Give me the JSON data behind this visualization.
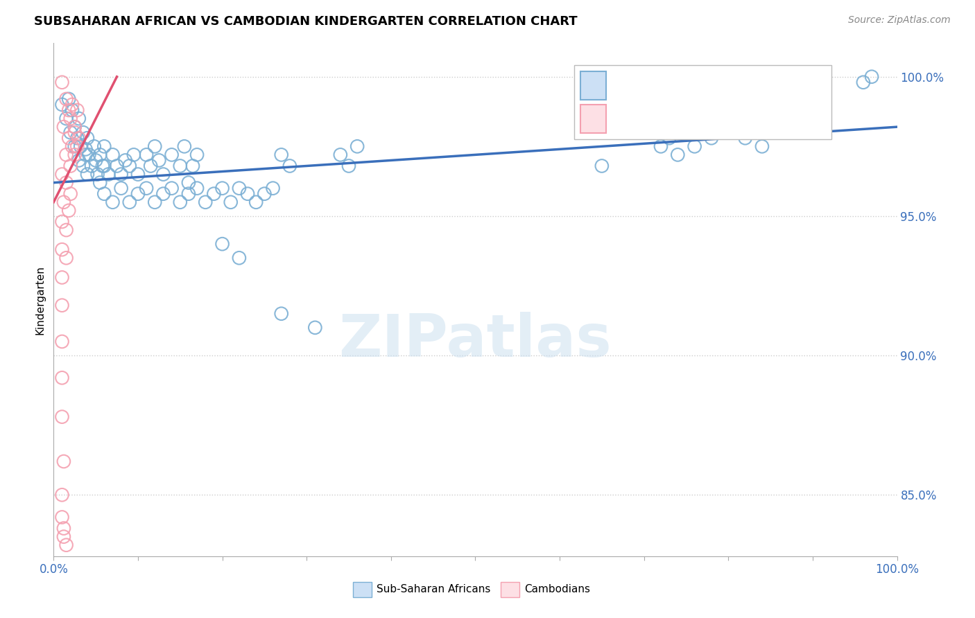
{
  "title": "SUBSAHARAN AFRICAN VS CAMBODIAN KINDERGARTEN CORRELATION CHART",
  "source": "Source: ZipAtlas.com",
  "ylabel": "Kindergarten",
  "xlim": [
    0.0,
    1.0
  ],
  "ylim": [
    0.828,
    1.012
  ],
  "yticks": [
    0.85,
    0.9,
    0.95,
    1.0
  ],
  "ytick_labels": [
    "85.0%",
    "90.0%",
    "95.0%",
    "100.0%"
  ],
  "blue_color": "#7bafd4",
  "pink_color": "#f4a0b0",
  "trendline_blue_color": "#3a6fbb",
  "trendline_pink_color": "#e05070",
  "watermark_text": "ZIPatlas",
  "blue_scatter": [
    [
      0.01,
      0.99
    ],
    [
      0.015,
      0.985
    ],
    [
      0.018,
      0.992
    ],
    [
      0.02,
      0.98
    ],
    [
      0.022,
      0.988
    ],
    [
      0.025,
      0.982
    ],
    [
      0.028,
      0.978
    ],
    [
      0.03,
      0.985
    ],
    [
      0.032,
      0.975
    ],
    [
      0.035,
      0.98
    ],
    [
      0.038,
      0.972
    ],
    [
      0.04,
      0.978
    ],
    [
      0.025,
      0.975
    ],
    [
      0.03,
      0.97
    ],
    [
      0.035,
      0.968
    ],
    [
      0.038,
      0.974
    ],
    [
      0.04,
      0.965
    ],
    [
      0.042,
      0.972
    ],
    [
      0.045,
      0.968
    ],
    [
      0.048,
      0.975
    ],
    [
      0.05,
      0.97
    ],
    [
      0.052,
      0.965
    ],
    [
      0.055,
      0.972
    ],
    [
      0.058,
      0.968
    ],
    [
      0.06,
      0.975
    ],
    [
      0.055,
      0.962
    ],
    [
      0.06,
      0.968
    ],
    [
      0.065,
      0.965
    ],
    [
      0.07,
      0.972
    ],
    [
      0.075,
      0.968
    ],
    [
      0.08,
      0.965
    ],
    [
      0.085,
      0.97
    ],
    [
      0.09,
      0.968
    ],
    [
      0.095,
      0.972
    ],
    [
      0.1,
      0.965
    ],
    [
      0.11,
      0.972
    ],
    [
      0.115,
      0.968
    ],
    [
      0.12,
      0.975
    ],
    [
      0.125,
      0.97
    ],
    [
      0.13,
      0.965
    ],
    [
      0.14,
      0.972
    ],
    [
      0.15,
      0.968
    ],
    [
      0.155,
      0.975
    ],
    [
      0.16,
      0.962
    ],
    [
      0.165,
      0.968
    ],
    [
      0.17,
      0.972
    ],
    [
      0.06,
      0.958
    ],
    [
      0.07,
      0.955
    ],
    [
      0.08,
      0.96
    ],
    [
      0.09,
      0.955
    ],
    [
      0.1,
      0.958
    ],
    [
      0.11,
      0.96
    ],
    [
      0.12,
      0.955
    ],
    [
      0.13,
      0.958
    ],
    [
      0.14,
      0.96
    ],
    [
      0.15,
      0.955
    ],
    [
      0.16,
      0.958
    ],
    [
      0.17,
      0.96
    ],
    [
      0.18,
      0.955
    ],
    [
      0.19,
      0.958
    ],
    [
      0.2,
      0.96
    ],
    [
      0.21,
      0.955
    ],
    [
      0.22,
      0.96
    ],
    [
      0.23,
      0.958
    ],
    [
      0.24,
      0.955
    ],
    [
      0.25,
      0.958
    ],
    [
      0.26,
      0.96
    ],
    [
      0.27,
      0.972
    ],
    [
      0.28,
      0.968
    ],
    [
      0.34,
      0.972
    ],
    [
      0.35,
      0.968
    ],
    [
      0.36,
      0.975
    ],
    [
      0.2,
      0.94
    ],
    [
      0.22,
      0.935
    ],
    [
      0.27,
      0.915
    ],
    [
      0.31,
      0.91
    ],
    [
      0.65,
      0.968
    ],
    [
      0.72,
      0.975
    ],
    [
      0.73,
      0.978
    ],
    [
      0.74,
      0.972
    ],
    [
      0.75,
      0.98
    ],
    [
      0.76,
      0.975
    ],
    [
      0.78,
      0.978
    ],
    [
      0.82,
      0.978
    ],
    [
      0.84,
      0.975
    ],
    [
      0.96,
      0.998
    ],
    [
      0.97,
      1.0
    ]
  ],
  "pink_scatter": [
    [
      0.01,
      0.998
    ],
    [
      0.015,
      0.992
    ],
    [
      0.018,
      0.988
    ],
    [
      0.02,
      0.985
    ],
    [
      0.022,
      0.99
    ],
    [
      0.025,
      0.982
    ],
    [
      0.028,
      0.988
    ],
    [
      0.012,
      0.982
    ],
    [
      0.018,
      0.978
    ],
    [
      0.022,
      0.975
    ],
    [
      0.025,
      0.98
    ],
    [
      0.028,
      0.975
    ],
    [
      0.03,
      0.978
    ],
    [
      0.015,
      0.972
    ],
    [
      0.02,
      0.968
    ],
    [
      0.025,
      0.972
    ],
    [
      0.01,
      0.965
    ],
    [
      0.015,
      0.962
    ],
    [
      0.02,
      0.958
    ],
    [
      0.012,
      0.955
    ],
    [
      0.018,
      0.952
    ],
    [
      0.01,
      0.948
    ],
    [
      0.015,
      0.945
    ],
    [
      0.01,
      0.938
    ],
    [
      0.015,
      0.935
    ],
    [
      0.01,
      0.928
    ],
    [
      0.01,
      0.918
    ],
    [
      0.01,
      0.905
    ],
    [
      0.01,
      0.892
    ],
    [
      0.01,
      0.878
    ],
    [
      0.012,
      0.862
    ],
    [
      0.01,
      0.85
    ],
    [
      0.012,
      0.838
    ],
    [
      0.01,
      0.842
    ],
    [
      0.012,
      0.835
    ],
    [
      0.015,
      0.832
    ]
  ],
  "blue_trend_x": [
    0.0,
    1.0
  ],
  "blue_trend_y": [
    0.962,
    0.982
  ],
  "pink_trend_x": [
    0.0,
    0.075
  ],
  "pink_trend_y": [
    0.955,
    1.0
  ]
}
